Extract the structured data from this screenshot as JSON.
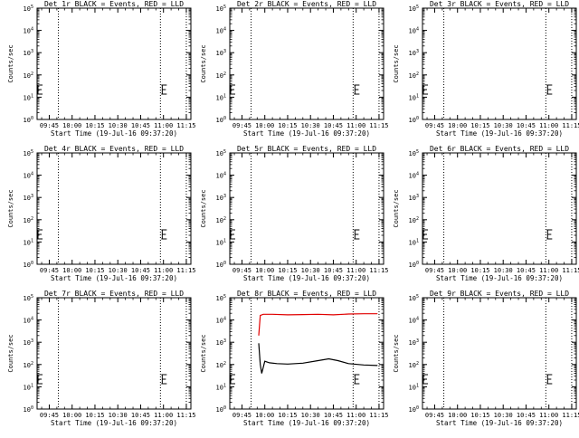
{
  "xtick_labels": [
    "09:45",
    "10:00",
    "10:15",
    "10:30",
    "10:45",
    "11:00",
    "11:15"
  ],
  "ytick_labels": {
    "e0": "10",
    "e1": "10",
    "e2": "10",
    "e3": "10",
    "e4": "10",
    "e5": "10"
  },
  "ytick_exponents": [
    "0",
    "1",
    "2",
    "3",
    "4",
    "5"
  ],
  "colors": {
    "events": "#000000",
    "lld": "#e00000"
  },
  "chart_data": [
    {
      "type": "line",
      "title": "Det 1r  BLACK = Events, RED = LLD",
      "xlabel": "Start Time (19-Jul-16 09:37:20)",
      "ylabel": "Counts/sec",
      "yscale": "log",
      "ylim": [
        1,
        100000
      ],
      "xlim": [
        "09:37",
        "11:18"
      ],
      "vlines": [
        "09:51",
        "10:58",
        "11:15"
      ],
      "series": []
    },
    {
      "type": "line",
      "title": "Det 2r  BLACK = Events, RED = LLD",
      "xlabel": "Start Time (19-Jul-16 09:37:20)",
      "ylabel": "Counts/sec",
      "yscale": "log",
      "ylim": [
        1,
        100000
      ],
      "xlim": [
        "09:37",
        "11:18"
      ],
      "vlines": [
        "09:51",
        "10:58",
        "11:15"
      ],
      "series": []
    },
    {
      "type": "line",
      "title": "Det 3r  BLACK = Events, RED = LLD",
      "xlabel": "Start Time (19-Jul-16 09:37:20)",
      "ylabel": "Counts/sec",
      "yscale": "log",
      "ylim": [
        1,
        100000
      ],
      "xlim": [
        "09:37",
        "11:18"
      ],
      "vlines": [
        "09:51",
        "10:58",
        "11:15"
      ],
      "series": []
    },
    {
      "type": "line",
      "title": "Det 4r  BLACK = Events, RED = LLD",
      "xlabel": "Start Time (19-Jul-16 09:37:20)",
      "ylabel": "Counts/sec",
      "yscale": "log",
      "ylim": [
        1,
        100000
      ],
      "xlim": [
        "09:37",
        "11:18"
      ],
      "vlines": [
        "09:51",
        "10:58",
        "11:15"
      ],
      "series": []
    },
    {
      "type": "line",
      "title": "Det 5r  BLACK = Events, RED = LLD",
      "xlabel": "Start Time (19-Jul-16 09:37:20)",
      "ylabel": "Counts/sec",
      "yscale": "log",
      "ylim": [
        1,
        100000
      ],
      "xlim": [
        "09:37",
        "11:18"
      ],
      "vlines": [
        "09:51",
        "10:58",
        "11:15"
      ],
      "series": []
    },
    {
      "type": "line",
      "title": "Det 6r  BLACK = Events, RED = LLD",
      "xlabel": "Start Time (19-Jul-16 09:37:20)",
      "ylabel": "Counts/sec",
      "yscale": "log",
      "ylim": [
        1,
        100000
      ],
      "xlim": [
        "09:37",
        "11:18"
      ],
      "vlines": [
        "09:51",
        "10:58",
        "11:15"
      ],
      "series": []
    },
    {
      "type": "line",
      "title": "Det 7r  BLACK = Events, RED = LLD",
      "xlabel": "Start Time (19-Jul-16 09:37:20)",
      "ylabel": "Counts/sec",
      "yscale": "log",
      "ylim": [
        1,
        100000
      ],
      "xlim": [
        "09:37",
        "11:18"
      ],
      "vlines": [
        "09:51",
        "10:58",
        "11:15"
      ],
      "series": []
    },
    {
      "type": "line",
      "title": "Det 8r  BLACK = Events, RED = LLD",
      "xlabel": "Start Time (19-Jul-16 09:37:20)",
      "ylabel": "Counts/sec",
      "yscale": "log",
      "ylim": [
        1,
        100000
      ],
      "xlim": [
        "09:37",
        "11:18"
      ],
      "vlines": [
        "09:51",
        "10:58",
        "11:15"
      ],
      "series": [
        {
          "color": "#e00000",
          "points": [
            [
              "09:56",
              2000
            ],
            [
              "09:57",
              16000
            ],
            [
              "09:59",
              18000
            ],
            [
              "10:05",
              18000
            ],
            [
              "10:15",
              17000
            ],
            [
              "10:25",
              17500
            ],
            [
              "10:35",
              18000
            ],
            [
              "10:45",
              17000
            ],
            [
              "10:55",
              18500
            ],
            [
              "11:05",
              19000
            ],
            [
              "11:14",
              19000
            ]
          ]
        },
        {
          "color": "#000000",
          "points": [
            [
              "09:56",
              900
            ],
            [
              "09:57",
              100
            ],
            [
              "09:58",
              40
            ],
            [
              "10:00",
              140
            ],
            [
              "10:03",
              120
            ],
            [
              "10:08",
              110
            ],
            [
              "10:15",
              105
            ],
            [
              "10:25",
              115
            ],
            [
              "10:35",
              150
            ],
            [
              "10:42",
              180
            ],
            [
              "10:48",
              150
            ],
            [
              "10:55",
              110
            ],
            [
              "11:05",
              95
            ],
            [
              "11:14",
              90
            ]
          ]
        }
      ]
    },
    {
      "type": "line",
      "title": "Det 9r  BLACK = Events, RED = LLD",
      "xlabel": "Start Time (19-Jul-16 09:37:20)",
      "ylabel": "Counts/sec",
      "yscale": "log",
      "ylim": [
        1,
        100000
      ],
      "xlim": [
        "09:37",
        "11:18"
      ],
      "vlines": [
        "09:51",
        "10:58",
        "11:15"
      ],
      "series": []
    }
  ]
}
